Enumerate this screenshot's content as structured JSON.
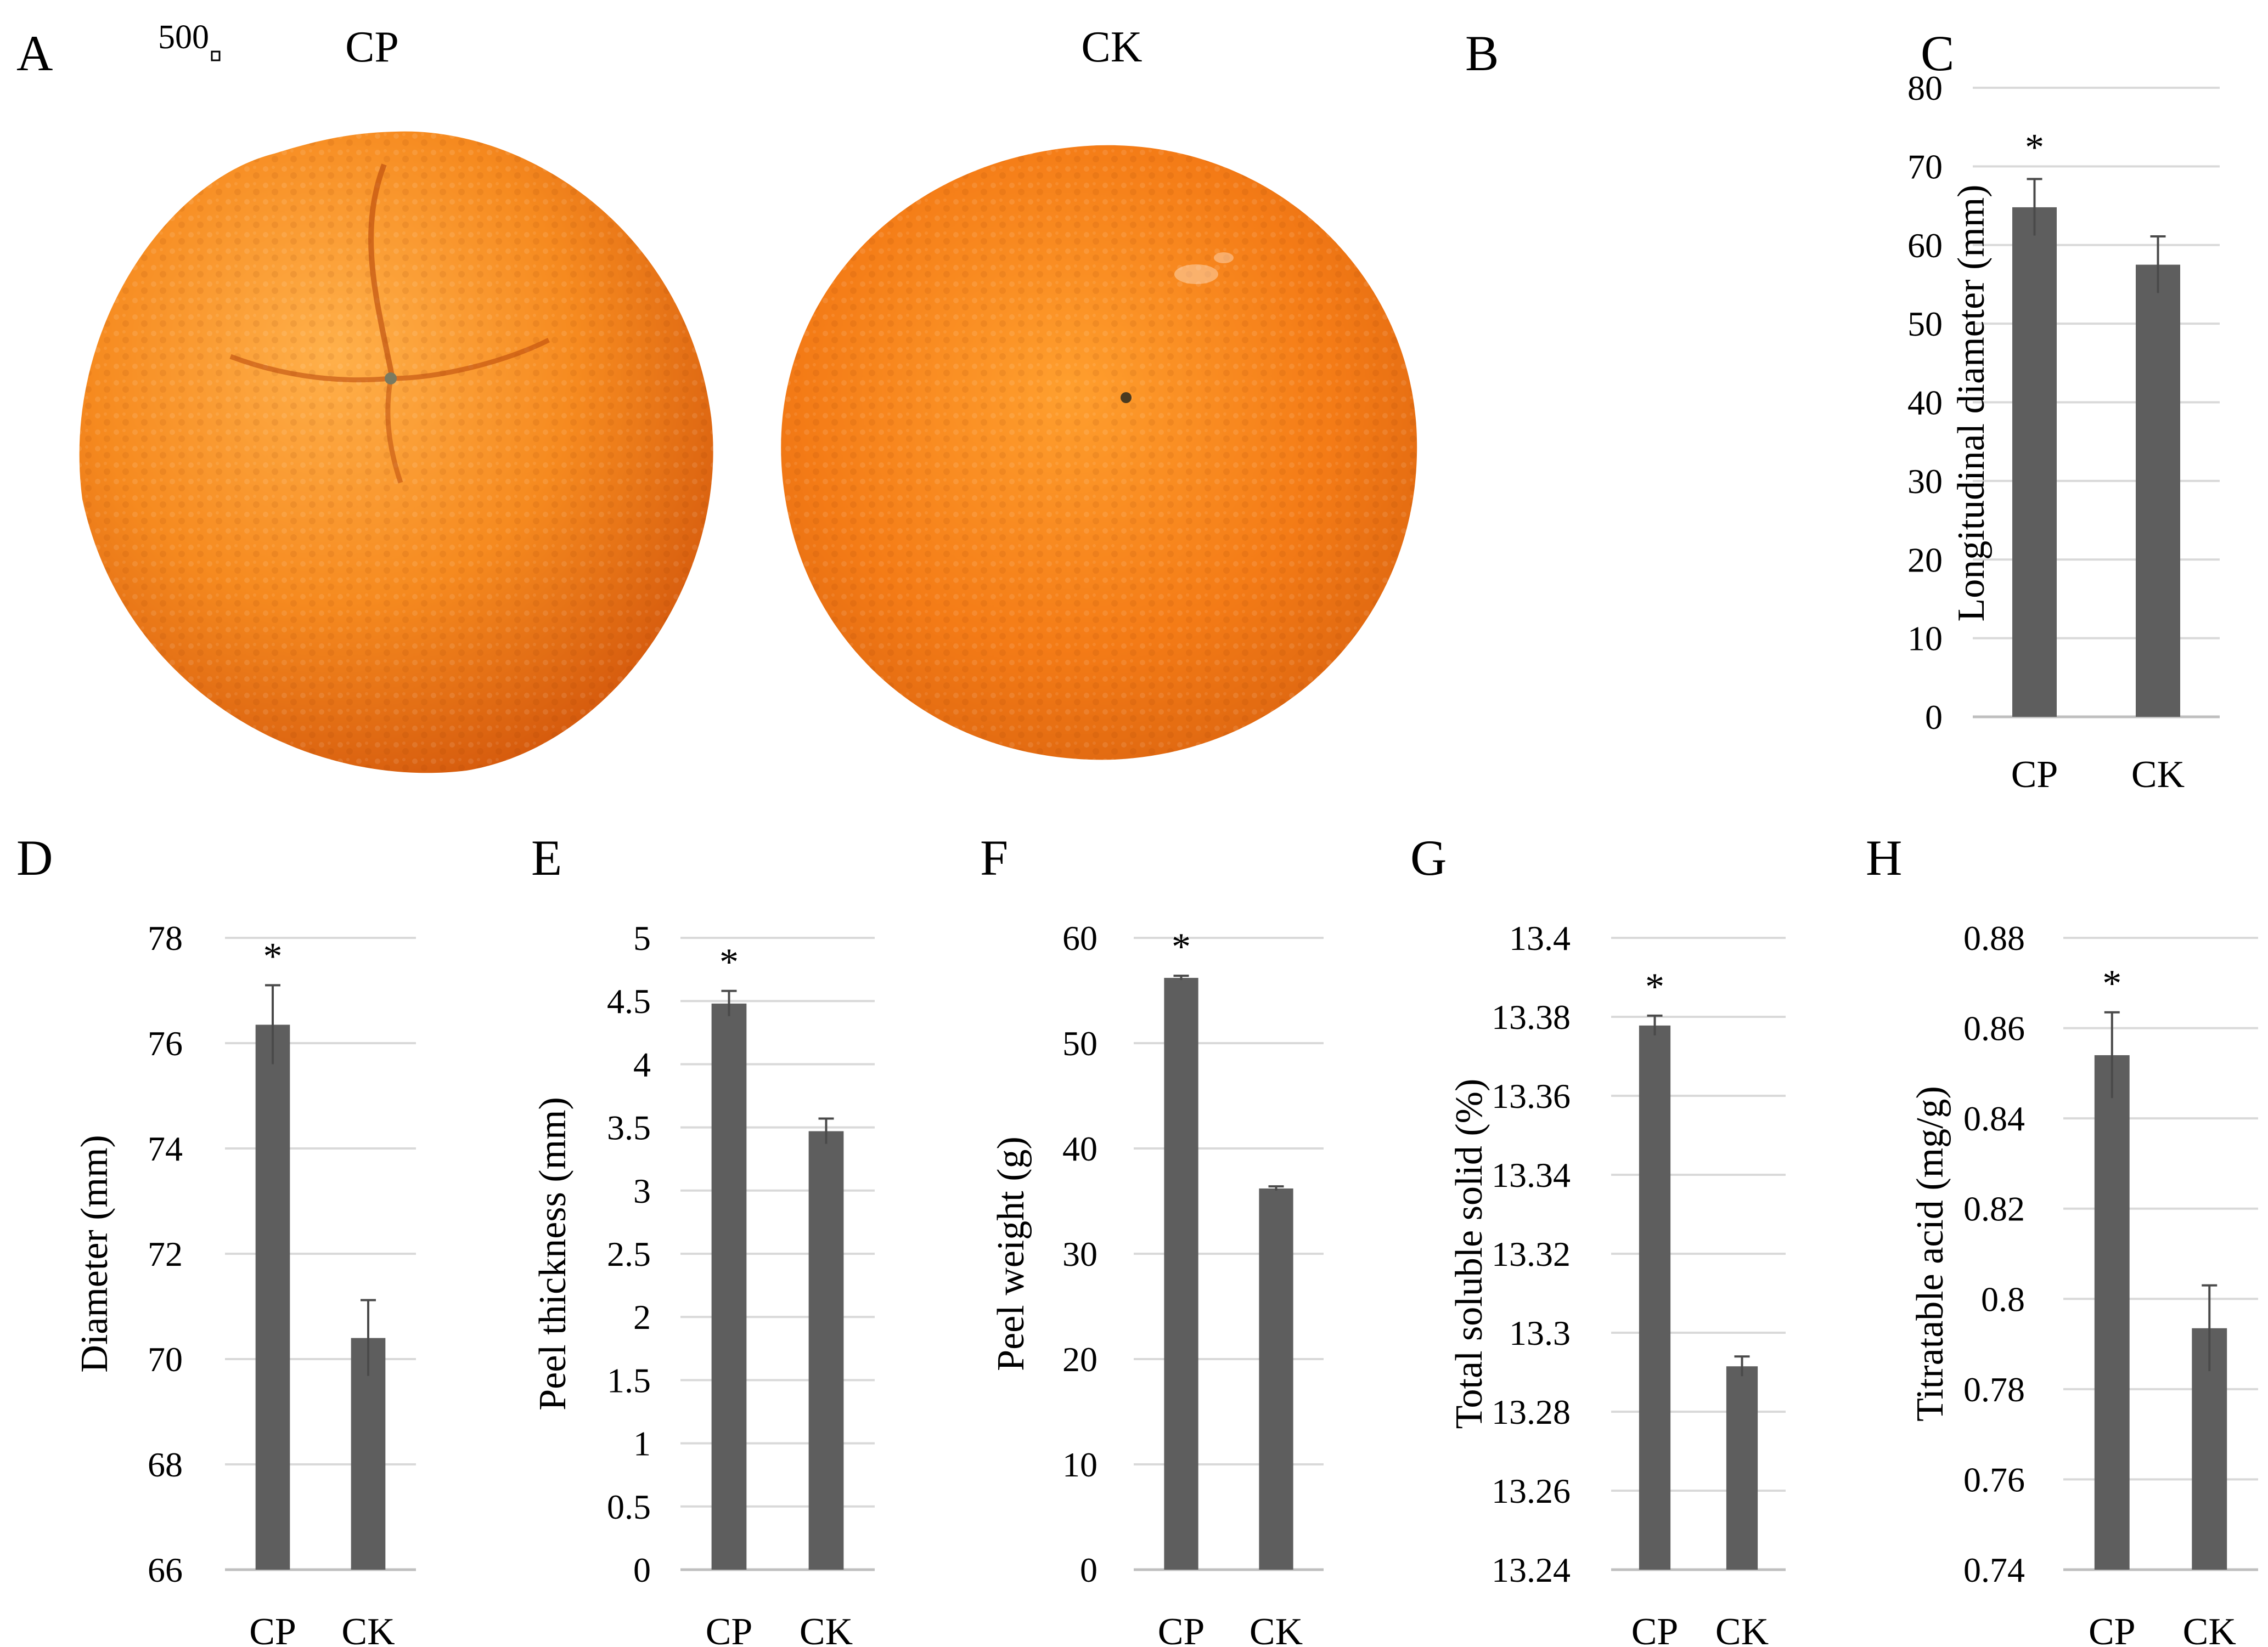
{
  "figure": {
    "panel_letters": [
      "A",
      "B",
      "C",
      "D",
      "E",
      "F",
      "G",
      "H"
    ],
    "photo_scale": "500",
    "photo_labels": [
      "CP",
      "CK"
    ],
    "significance_mark": "*"
  },
  "colors": {
    "bar": "#5e5e5e",
    "grid": "#d9d9d9",
    "axis": "#bfbfbf",
    "text": "#000000",
    "orange_light": "#ffa53a",
    "orange_mid": "#f5841a",
    "orange_dark": "#d8560b"
  },
  "chart_data": [
    {
      "panel": "C",
      "type": "bar",
      "categories": [
        "CP",
        "CK"
      ],
      "values": [
        64.8,
        57.5
      ],
      "errors": [
        3.6,
        3.6
      ],
      "significant": [
        true,
        false
      ],
      "ylabel": "Longitudinal diameter (mm)",
      "ylim": [
        0,
        80
      ],
      "ticks": [
        "0",
        "10",
        "20",
        "30",
        "40",
        "50",
        "60",
        "70",
        "80"
      ]
    },
    {
      "panel": "D",
      "type": "bar",
      "categories": [
        "CP",
        "CK"
      ],
      "values": [
        76.35,
        70.4
      ],
      "errors": [
        0.75,
        0.72
      ],
      "significant": [
        true,
        false
      ],
      "ylabel": "Diameter (mm)",
      "ylim": [
        66,
        78
      ],
      "ticks": [
        "66",
        "68",
        "70",
        "72",
        "74",
        "76",
        "78"
      ]
    },
    {
      "panel": "E",
      "type": "bar",
      "categories": [
        "CP",
        "CK"
      ],
      "values": [
        4.48,
        3.47
      ],
      "errors": [
        0.1,
        0.1
      ],
      "significant": [
        true,
        false
      ],
      "ylabel": "Peel thickness (mm)",
      "ylim": [
        0,
        5
      ],
      "ticks": [
        "0",
        "0.5",
        "1",
        "1.5",
        "2",
        "2.5",
        "3",
        "3.5",
        "4",
        "4.5",
        "5"
      ]
    },
    {
      "panel": "F",
      "type": "bar",
      "categories": [
        "CP",
        "CK"
      ],
      "values": [
        56.2,
        36.2
      ],
      "errors": [
        0.2,
        0.2
      ],
      "significant": [
        true,
        false
      ],
      "ylabel": "Peel weight (g)",
      "ylim": [
        0,
        60
      ],
      "ticks": [
        "0",
        "10",
        "20",
        "30",
        "40",
        "50",
        "60"
      ]
    },
    {
      "panel": "G",
      "type": "bar",
      "categories": [
        "CP",
        "CK"
      ],
      "values": [
        13.3778,
        13.2915
      ],
      "errors": [
        0.0025,
        0.0025
      ],
      "significant": [
        true,
        false
      ],
      "ylabel": "Total soluble solid (%)",
      "ylim": [
        13.24,
        13.4
      ],
      "ticks": [
        "13.24",
        "13.26",
        "13.28",
        "13.3",
        "13.32",
        "13.34",
        "13.36",
        "13.38",
        "13.4"
      ]
    },
    {
      "panel": "H",
      "type": "bar",
      "categories": [
        "CP",
        "CK"
      ],
      "values": [
        0.854,
        0.7935
      ],
      "errors": [
        0.0095,
        0.0095
      ],
      "significant": [
        true,
        false
      ],
      "ylabel": "Titratable acid (mg/g)",
      "ylim": [
        0.74,
        0.88
      ],
      "ticks": [
        "0.74",
        "0.76",
        "0.78",
        "0.8",
        "0.82",
        "0.84",
        "0.86",
        "0.88"
      ]
    }
  ]
}
